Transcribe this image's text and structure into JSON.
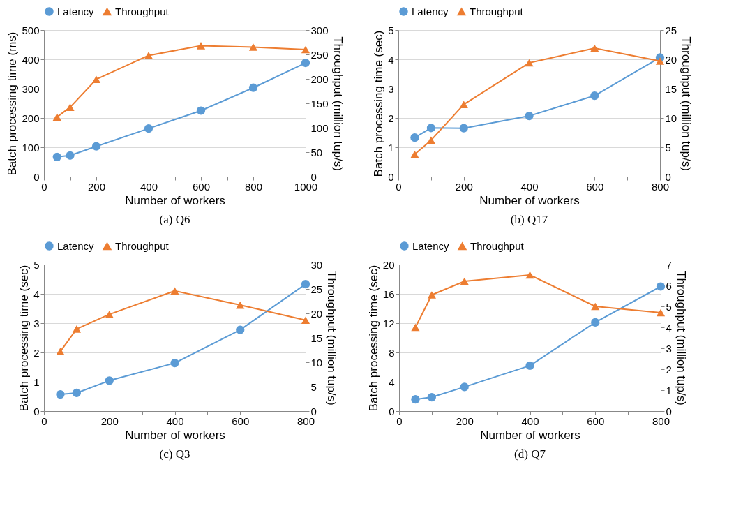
{
  "chart_data": [
    {
      "type": "line",
      "title": "(a) Q6",
      "xlabel": "Number of workers",
      "ylabel": "Batch processing time (ms)",
      "y2label": "Throughput (million tup/s)",
      "x": [
        50,
        100,
        200,
        400,
        600,
        800,
        1000
      ],
      "xlim": [
        0,
        1000
      ],
      "xticks": [
        0,
        {
          "value": 100,
          "label": null
        },
        200,
        {
          "value": 300,
          "label": null
        },
        400,
        {
          "value": 500,
          "label": null
        },
        600,
        {
          "value": 700,
          "label": null
        },
        800,
        {
          "value": 900,
          "label": null
        },
        1000
      ],
      "ylim": [
        0,
        500
      ],
      "yticks": [
        0,
        100,
        200,
        300,
        400,
        500
      ],
      "y2lim": [
        0,
        300
      ],
      "y2ticks": [
        0,
        50,
        100,
        150,
        200,
        250,
        300
      ],
      "grid": "y",
      "legend": "top",
      "line_style": "solid",
      "series": [
        {
          "name": "Latency",
          "color": "#5b9bd5",
          "marker": "circle",
          "values": [
            67,
            72,
            103,
            164,
            225,
            303,
            388
          ]
        },
        {
          "name": "Throughput",
          "color": "#ed7d31",
          "marker": "triangle",
          "axis": "y2",
          "values": [
            122,
            142,
            199,
            248,
            268,
            265,
            260
          ]
        }
      ]
    },
    {
      "type": "line",
      "title": "(b) Q17",
      "xlabel": "Number of workers",
      "ylabel": "Batch processing time (sec)",
      "y2label": "Throughput (million tup/s)",
      "x": [
        50,
        100,
        200,
        400,
        600,
        800
      ],
      "xlim": [
        0,
        800
      ],
      "xticks": [
        0,
        {
          "value": 100,
          "label": null
        },
        200,
        {
          "value": 300,
          "label": null
        },
        400,
        {
          "value": 500,
          "label": null
        },
        600,
        {
          "value": 700,
          "label": null
        },
        800
      ],
      "ylim": [
        0,
        5
      ],
      "yticks": [
        0,
        1,
        2,
        3,
        4,
        5
      ],
      "y2lim": [
        0,
        25
      ],
      "y2ticks": [
        0,
        5,
        10,
        15,
        20,
        25
      ],
      "grid": "y",
      "legend": "top",
      "line_style": "solid",
      "series": [
        {
          "name": "Latency",
          "color": "#5b9bd5",
          "marker": "circle",
          "values": [
            1.33,
            1.66,
            1.65,
            2.07,
            2.76,
            4.06
          ]
        },
        {
          "name": "Throughput",
          "color": "#ed7d31",
          "marker": "triangle",
          "axis": "y2",
          "values": [
            3.8,
            6.2,
            12.3,
            19.4,
            21.9,
            19.7
          ]
        }
      ]
    },
    {
      "type": "line",
      "title": "(c) Q3",
      "xlabel": "Number of workers",
      "ylabel": "Batch processing time (sec)",
      "y2label": "Throughput (million tup/s)",
      "x": [
        50,
        100,
        200,
        400,
        600,
        800
      ],
      "xlim": [
        0,
        800
      ],
      "xticks": [
        0,
        {
          "value": 100,
          "label": null
        },
        200,
        {
          "value": 300,
          "label": null
        },
        400,
        {
          "value": 500,
          "label": null
        },
        600,
        {
          "value": 700,
          "label": null
        },
        800
      ],
      "ylim": [
        0,
        5
      ],
      "yticks": [
        0,
        1,
        2,
        3,
        4,
        5
      ],
      "y2lim": [
        0,
        30
      ],
      "y2ticks": [
        0,
        5,
        10,
        15,
        20,
        25,
        30
      ],
      "grid": "y",
      "legend": "top",
      "line_style": "solid",
      "series": [
        {
          "name": "Latency",
          "color": "#5b9bd5",
          "marker": "circle",
          "values": [
            0.57,
            0.62,
            1.04,
            1.64,
            2.77,
            4.33
          ]
        },
        {
          "name": "Throughput",
          "color": "#ed7d31",
          "marker": "triangle",
          "axis": "y2",
          "values": [
            12.2,
            16.8,
            19.8,
            24.6,
            21.7,
            18.6
          ]
        }
      ]
    },
    {
      "type": "line",
      "title": "(d) Q7",
      "xlabel": "Number of workers",
      "ylabel": "Batch processing time (sec)",
      "y2label": "Throughput (million tup/s)",
      "x": [
        50,
        100,
        200,
        400,
        600,
        800
      ],
      "xlim": [
        0,
        800
      ],
      "xticks": [
        0,
        {
          "value": 100,
          "label": null
        },
        200,
        {
          "value": 300,
          "label": null
        },
        400,
        {
          "value": 500,
          "label": null
        },
        600,
        {
          "value": 700,
          "label": null
        },
        800
      ],
      "ylim": [
        0,
        20
      ],
      "yticks": [
        0,
        4,
        8,
        12,
        16,
        20
      ],
      "y2lim": [
        0,
        7
      ],
      "y2ticks": [
        0,
        1,
        2,
        3,
        4,
        5,
        6,
        7
      ],
      "grid": "y",
      "legend": "top",
      "line_style": "solid",
      "series": [
        {
          "name": "Latency",
          "color": "#5b9bd5",
          "marker": "circle",
          "values": [
            1.6,
            1.9,
            3.3,
            6.2,
            12.1,
            17.0
          ]
        },
        {
          "name": "Throughput",
          "color": "#ed7d31",
          "marker": "triangle",
          "axis": "y2",
          "values": [
            4.0,
            5.55,
            6.2,
            6.5,
            5.0,
            4.7
          ]
        }
      ]
    }
  ]
}
